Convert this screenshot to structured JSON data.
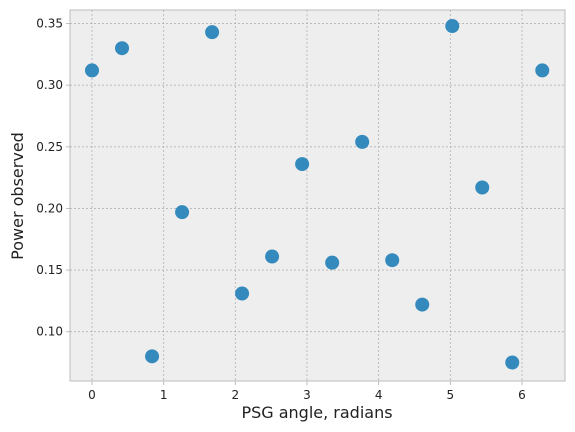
{
  "chart_data": {
    "type": "scatter",
    "x_label": "PSG angle, radians",
    "y_label": "Power observed",
    "x": [
      0,
      0.419,
      0.838,
      1.257,
      1.676,
      2.094,
      2.513,
      2.932,
      3.351,
      3.77,
      4.189,
      4.608,
      5.027,
      5.445,
      5.864,
      6.283
    ],
    "values": [
      0.312,
      0.33,
      0.08,
      0.197,
      0.343,
      0.131,
      0.161,
      0.236,
      0.156,
      0.254,
      0.158,
      0.122,
      0.348,
      0.217,
      0.075,
      0.312
    ],
    "color": "#348abd",
    "xlim": [
      -0.307,
      6.6
    ],
    "ylim": [
      0.06,
      0.361
    ],
    "xticks": [
      0,
      1,
      2,
      3,
      4,
      5,
      6
    ],
    "yticks": [
      {
        "value": 0.1,
        "label": "0.10"
      },
      {
        "value": 0.15,
        "label": "0.15"
      },
      {
        "value": 0.2,
        "label": "0.20"
      },
      {
        "value": 0.25,
        "label": "0.25"
      },
      {
        "value": 0.3,
        "label": "0.30"
      },
      {
        "value": 0.35,
        "label": "0.35"
      }
    ],
    "grid": true
  }
}
